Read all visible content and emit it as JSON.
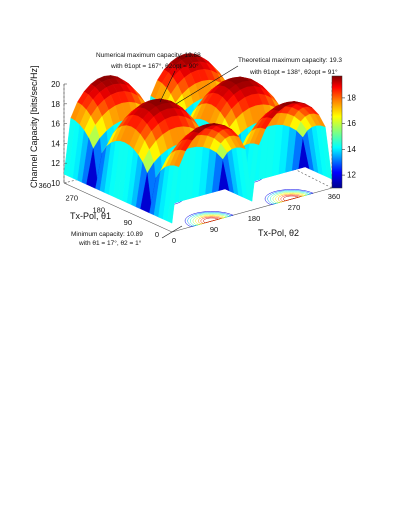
{
  "chart_data": {
    "type": "surface",
    "zlabel": "Channel Capacity [bits/sec/Hz]",
    "xlabel": "Tx-Pol, θ1",
    "ylabel": "Tx-Pol, θ2",
    "x_ticks": [
      "0",
      "90",
      "180",
      "270",
      "360"
    ],
    "y_ticks": [
      "0",
      "90",
      "180",
      "270",
      "360"
    ],
    "z_ticks": [
      "10",
      "12",
      "14",
      "16",
      "18",
      "20"
    ],
    "zlim": [
      10,
      20
    ],
    "colorbar_ticks": [
      "12",
      "14",
      "16",
      "18"
    ],
    "colorbar_range": [
      11,
      19.7
    ],
    "colormap": [
      "#00008f",
      "#0000ff",
      "#00ffff",
      "#80ff80",
      "#ffff00",
      "#ff8000",
      "#ff0000",
      "#800000"
    ],
    "surface": {
      "peaks_theta1_deg": [
        0,
        180,
        360
      ],
      "peaks_theta2_deg": [
        90,
        270
      ],
      "max_capacity": 19.68,
      "min_capacity": 10.89,
      "resolution_deg": 15
    },
    "annotations": {
      "numerical_max": {
        "line1": "Numerical maximum capacity: 19.68",
        "line2": "with θ1opt = 167°, θ2opt = 90°"
      },
      "theoretical_max": {
        "line1": "Theoretical maximum capacity: 19.3",
        "line2": "with θ1opt = 138°, θ2opt = 91°"
      },
      "minimum": {
        "line1": "Minimum capacity: 10.89",
        "line2": "with θ1 = 17°, θ2 = 1°"
      }
    }
  }
}
